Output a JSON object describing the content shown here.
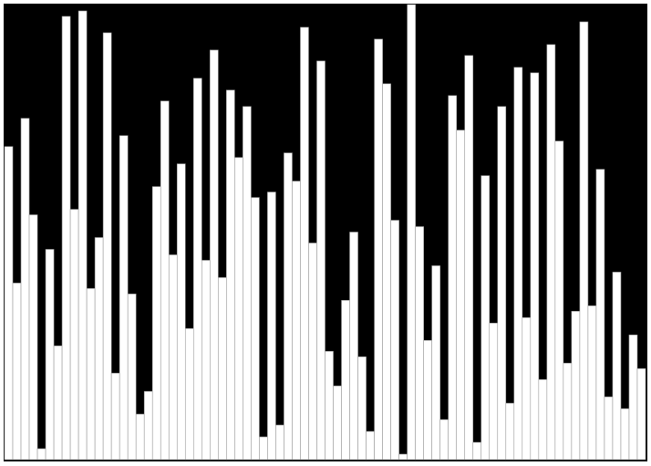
{
  "chart_data": {
    "type": "bar",
    "title": "",
    "xlabel": "",
    "ylabel": "",
    "ylim": [
      0,
      500
    ],
    "grid": false,
    "legend": "none",
    "background_color": "#000000",
    "bar_color": "#ffffff",
    "bar_edge_color": "#9a9a9a",
    "values": [
      344,
      194,
      375,
      269,
      12,
      231,
      125,
      487,
      275,
      493,
      188,
      244,
      469,
      95,
      356,
      182,
      50,
      75,
      300,
      394,
      225,
      325,
      144,
      419,
      219,
      450,
      200,
      406,
      332,
      388,
      288,
      25,
      294,
      38,
      337,
      306,
      475,
      238,
      438,
      119,
      81,
      175,
      250,
      113,
      31,
      462,
      413,
      263,
      6,
      500,
      256,
      131,
      213,
      44,
      400,
      362,
      444,
      19,
      312,
      150,
      388,
      62,
      431,
      156,
      425,
      88,
      456,
      350,
      106,
      163,
      481,
      169,
      319,
      69,
      206,
      56,
      137,
      100
    ]
  }
}
